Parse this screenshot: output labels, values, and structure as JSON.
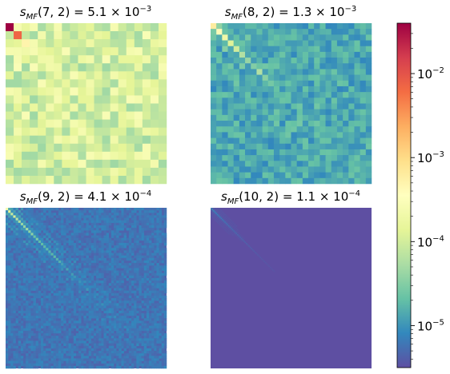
{
  "chart_data": [
    {
      "type": "heatmap",
      "title_base": "s",
      "title_sub": "MF",
      "title_args": "(7, 2)",
      "title_mantissa": "5.1",
      "title_exponent": "−3",
      "value": 0.0051,
      "size": 20,
      "diag_strength": 0.15,
      "diag_decay": 0.2,
      "base_log": -4.35,
      "noise_log": 0.8,
      "hot_cells": [
        [
          0,
          0,
          -1.4
        ],
        [
          1,
          1,
          -2.15
        ],
        [
          0,
          2,
          -3.8
        ],
        [
          2,
          2,
          -3.3
        ],
        [
          3,
          3,
          -3.6
        ],
        [
          4,
          4,
          -3.7
        ],
        [
          6,
          6,
          -3.75
        ],
        [
          7,
          7,
          -3.8
        ],
        [
          4,
          2,
          -3.85
        ],
        [
          2,
          6,
          -3.9
        ],
        [
          9,
          9,
          -3.85
        ],
        [
          10,
          10,
          -3.8
        ],
        [
          19,
          18,
          -4.0
        ]
      ]
    },
    {
      "type": "heatmap",
      "title_base": "s",
      "title_sub": "MF",
      "title_args": "(8, 2)",
      "title_mantissa": "1.3",
      "title_exponent": "−3",
      "value": 0.0013,
      "size": 28,
      "diag_strength": 1.3,
      "diag_decay": 0.12,
      "base_log": -5.1,
      "noise_log": 0.45,
      "hot_cells": [
        [
          0,
          0,
          -3.2
        ],
        [
          1,
          1,
          -3.4
        ],
        [
          2,
          2,
          -3.7
        ],
        [
          3,
          3,
          -3.9
        ]
      ]
    },
    {
      "type": "heatmap",
      "title_base": "s",
      "title_sub": "MF",
      "title_args": "(9, 2)",
      "title_mantissa": "4.1",
      "title_exponent": "−4",
      "value": 0.00041,
      "size": 64,
      "diag_strength": 1.4,
      "diag_decay": 0.07,
      "base_log": -5.35,
      "noise_log": 0.25,
      "hot_cells": [
        [
          0,
          0,
          -3.6
        ],
        [
          1,
          1,
          -3.9
        ],
        [
          2,
          2,
          -4.1
        ]
      ]
    },
    {
      "type": "heatmap",
      "title_base": "s",
      "title_sub": "MF",
      "title_args": "(10, 2)",
      "title_mantissa": "1.1",
      "title_exponent": "−4",
      "value": 0.00011,
      "size": 128,
      "diag_strength": 0.5,
      "diag_decay": 0.05,
      "base_log": -5.5,
      "noise_log": 0.0,
      "hot_cells": []
    }
  ],
  "colorbar": {
    "colormap": "Spectral_r",
    "log_min": -5.5,
    "log_max": -1.4,
    "ticks": [
      {
        "base": "10",
        "exponent": "−2",
        "log": -2
      },
      {
        "base": "10",
        "exponent": "−3",
        "log": -3
      },
      {
        "base": "10",
        "exponent": "−4",
        "log": -4
      },
      {
        "base": "10",
        "exponent": "−5",
        "log": -5
      }
    ]
  }
}
